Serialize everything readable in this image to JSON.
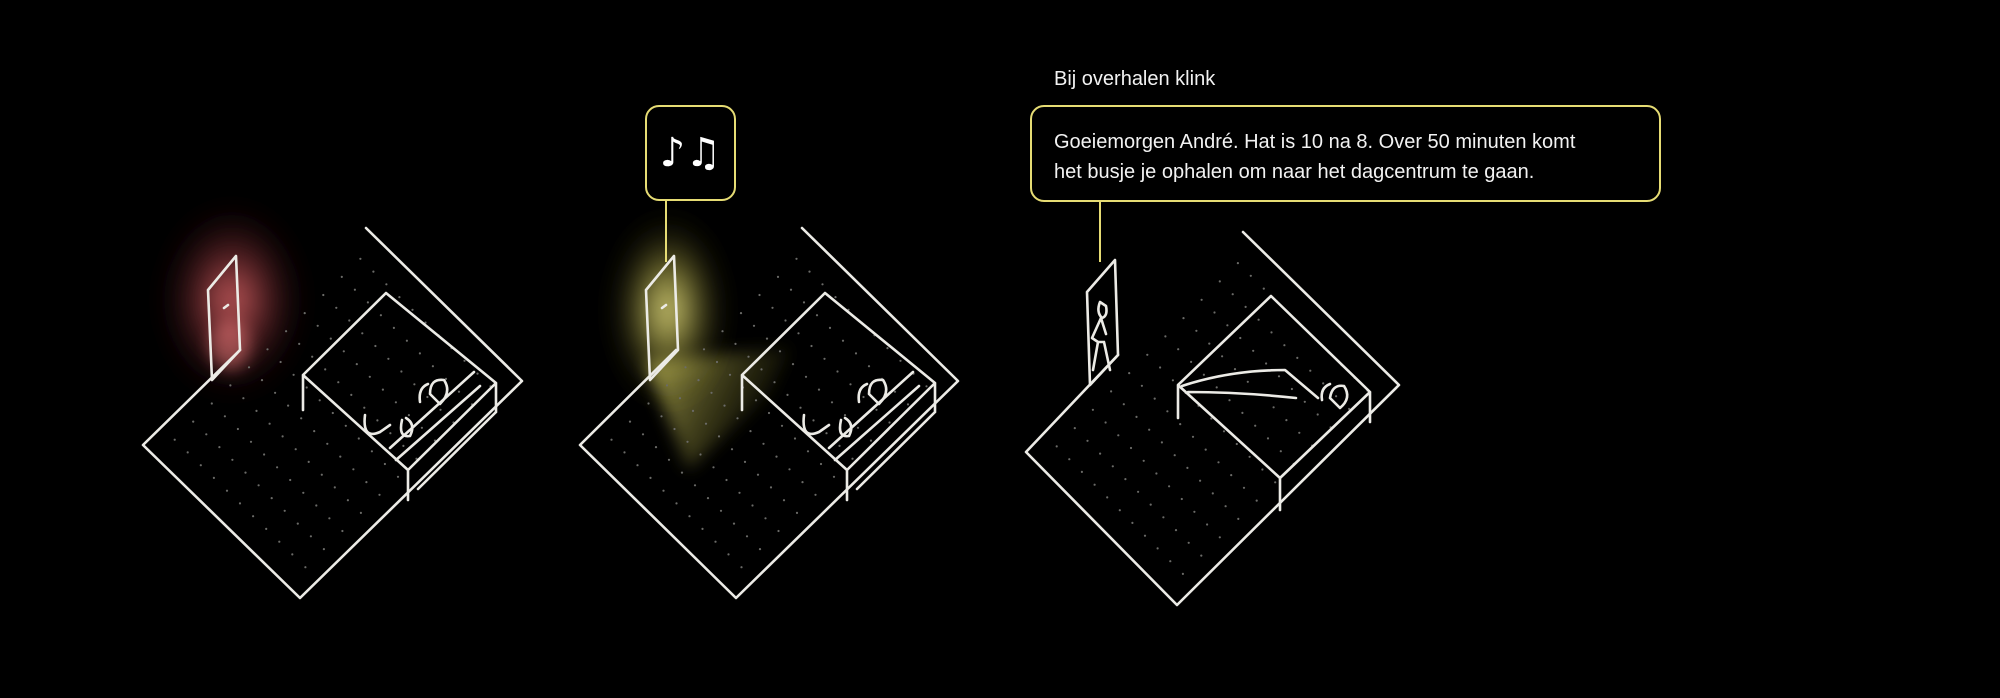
{
  "caption": "Bij overhalen klink",
  "speech_bubble": {
    "line1": "Goeiemorgen André. Hat is 10 na 8. Over 50 minuten komt",
    "line2": "het busje je ophalen om naar het dagcentrum te gaan."
  },
  "music_bubble": {
    "icon": "music-notes-icon",
    "glyph": "♪♫"
  },
  "colors": {
    "background": "#000000",
    "sketch_line": "#ecebe6",
    "accent_yellow": "#e6dc74",
    "sensor_red": "#ff6f6f",
    "light_glow": "#f5f07a"
  },
  "panels": [
    {
      "id": "panel-1",
      "state": "sleeping, door sensor glowing red"
    },
    {
      "id": "panel-2",
      "state": "sleeping, door light and music on"
    },
    {
      "id": "panel-3",
      "state": "person at door, bed empty, voice message"
    }
  ]
}
